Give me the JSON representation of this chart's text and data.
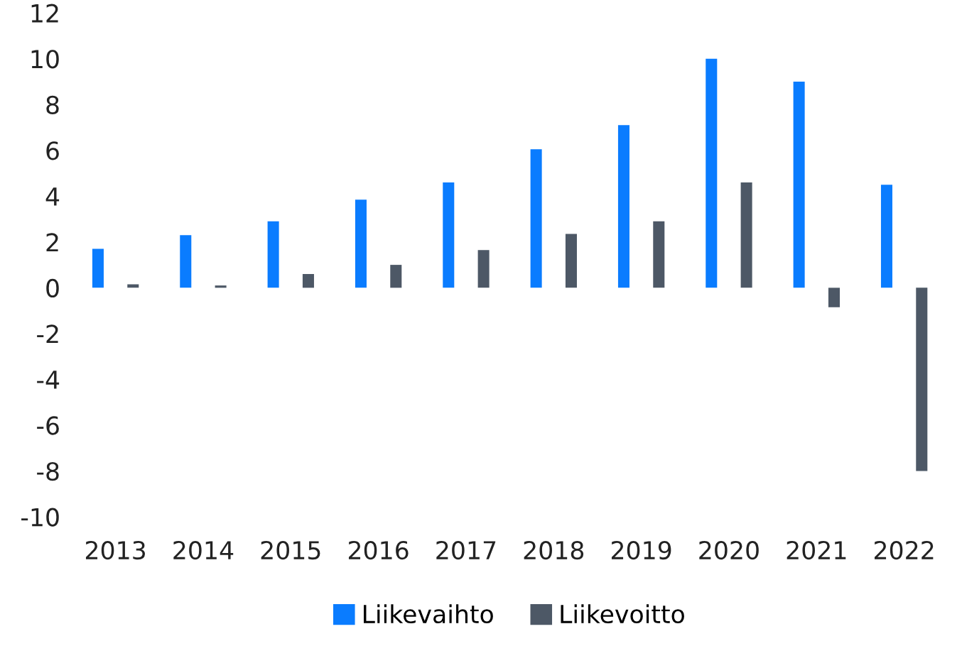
{
  "chart_data": {
    "type": "bar",
    "categories": [
      "2013",
      "2014",
      "2015",
      "2016",
      "2017",
      "2018",
      "2019",
      "2020",
      "2021",
      "2022"
    ],
    "series": [
      {
        "name": "Liikevaihto",
        "color": "#0a7cff",
        "values": [
          1.7,
          2.3,
          2.9,
          3.85,
          4.6,
          6.05,
          7.1,
          10.0,
          9.0,
          4.5
        ]
      },
      {
        "name": "Liikevoitto",
        "color": "#4d5866",
        "values": [
          0.15,
          0.1,
          0.6,
          1.0,
          1.65,
          2.35,
          2.9,
          4.6,
          -0.85,
          -8.0
        ]
      }
    ],
    "ylim": [
      -10,
      12
    ],
    "yticks": [
      -10,
      -8,
      -6,
      -4,
      -2,
      0,
      2,
      4,
      6,
      8,
      10,
      12
    ],
    "grid": false,
    "legend": "bottom"
  }
}
